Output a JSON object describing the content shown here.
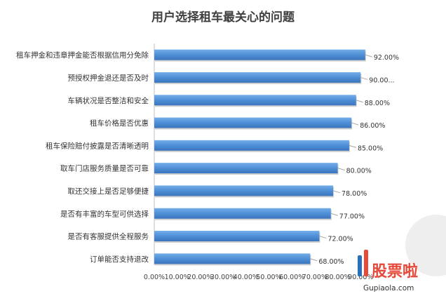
{
  "chart_data": {
    "type": "bar",
    "orientation": "horizontal",
    "title": "用户选择租车最关心的问题",
    "categories": [
      "租车押金和违章押金能否根据信用分免除",
      "预授权押金退还是否及时",
      "车辆状况是否整洁和安全",
      "租车价格是否优惠",
      "租车保险赔付披露是否清晰透明",
      "取车门店服务质量是否可靠",
      "取还交接上是否足够便捷",
      "是否有丰富的车型可供选择",
      "是否有客服提供全程服务",
      "订单能否支持退改"
    ],
    "values": [
      92,
      90,
      88,
      86,
      85,
      80,
      78,
      77,
      72,
      68
    ],
    "value_labels": [
      "92.00%",
      "90.00...",
      "88.00%",
      "86.00%",
      "85.00%",
      "80.00%",
      "78.00%",
      "77.00%",
      "72.00%",
      "68.00%"
    ],
    "xlim": [
      0,
      90
    ],
    "x_ticks": [
      "0.00%",
      "10.00%",
      "20.00%",
      "30.00%",
      "40.00%",
      "50.00%",
      "60.00%",
      "70.00%",
      "80.00%",
      "90.00%"
    ],
    "bar_color": "#4f8fd6",
    "leader_color": "#a6a6a6",
    "grid": false,
    "legend": "none"
  },
  "watermark": {
    "logo_text": "股票啦",
    "url": "Gupiaola.com",
    "colors": {
      "logo": "#e64a3b",
      "accent": "#2a6fb8"
    }
  }
}
